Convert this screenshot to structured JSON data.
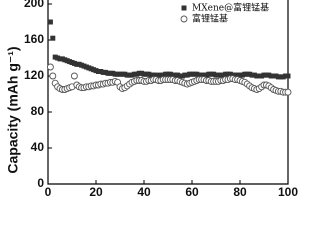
{
  "chart_data": {
    "type": "scatter",
    "ylabel": "Capacity (mAh g⁻¹)",
    "x": [
      1,
      2,
      3,
      4,
      5,
      6,
      7,
      8,
      9,
      10,
      11,
      12,
      13,
      14,
      15,
      16,
      17,
      18,
      19,
      20,
      21,
      22,
      23,
      24,
      25,
      26,
      27,
      28,
      29,
      30,
      31,
      32,
      33,
      34,
      35,
      36,
      37,
      38,
      39,
      40,
      41,
      42,
      43,
      44,
      45,
      46,
      47,
      48,
      49,
      50,
      51,
      52,
      53,
      54,
      55,
      56,
      57,
      58,
      59,
      60,
      61,
      62,
      63,
      64,
      65,
      66,
      67,
      68,
      69,
      70,
      71,
      72,
      73,
      74,
      75,
      76,
      77,
      78,
      79,
      80,
      81,
      82,
      83,
      84,
      85,
      86,
      87,
      88,
      89,
      90,
      91,
      92,
      93,
      94,
      95,
      96,
      97,
      98,
      99,
      100
    ],
    "series": [
      {
        "name": "MXene@富锂锰基",
        "color": "#333333",
        "marker": "square",
        "values": [
          180,
          162,
          141,
          140,
          139,
          139,
          138,
          137,
          136,
          135,
          134,
          133,
          133,
          132,
          131,
          130,
          129,
          128,
          127,
          126,
          125,
          125,
          124,
          124,
          123,
          123,
          123,
          122,
          122,
          122,
          122,
          122,
          121,
          121,
          121,
          122,
          122,
          123,
          123,
          122,
          122,
          122,
          121,
          121,
          121,
          120,
          121,
          121,
          122,
          122,
          122,
          121,
          121,
          121,
          120,
          120,
          121,
          121,
          122,
          122,
          122,
          122,
          121,
          121,
          121,
          121,
          122,
          122,
          122,
          121,
          121,
          121,
          121,
          122,
          122,
          122,
          121,
          121,
          121,
          121,
          121,
          122,
          122,
          122,
          121,
          121,
          120,
          120,
          120,
          121,
          121,
          121,
          120,
          120,
          120,
          119,
          119,
          119,
          120,
          120
        ]
      },
      {
        "name": "富锂锰基",
        "color": "#555555",
        "marker": "circle",
        "values": [
          130,
          120,
          112,
          108,
          106,
          105,
          105,
          106,
          107,
          108,
          120,
          110,
          108,
          107,
          107,
          108,
          108,
          109,
          109,
          110,
          110,
          111,
          111,
          112,
          112,
          113,
          113,
          114,
          113,
          108,
          106,
          107,
          109,
          111,
          113,
          114,
          115,
          115,
          115,
          114,
          114,
          115,
          115,
          116,
          116,
          115,
          115,
          116,
          116,
          116,
          116,
          116,
          115,
          115,
          114,
          113,
          112,
          111,
          112,
          113,
          114,
          115,
          116,
          116,
          116,
          115,
          115,
          114,
          114,
          114,
          114,
          115,
          115,
          116,
          116,
          117,
          117,
          116,
          116,
          115,
          114,
          113,
          111,
          109,
          107,
          106,
          105,
          106,
          108,
          110,
          110,
          109,
          107,
          105,
          104,
          103,
          103,
          102,
          102,
          102
        ]
      }
    ],
    "xlim": [
      0,
      100
    ],
    "xticks": [
      0,
      20,
      40,
      60,
      80,
      100
    ],
    "ylim": [
      0,
      200
    ],
    "yticks": [
      0,
      40,
      80,
      120,
      160,
      200
    ],
    "legend": "upper right"
  }
}
